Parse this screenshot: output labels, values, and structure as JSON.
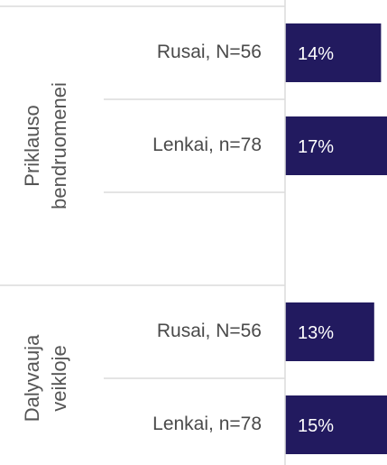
{
  "chart_data": {
    "type": "bar",
    "orientation": "horizontal",
    "color": "#221a5f",
    "groups": [
      {
        "name": "Priklauso bendruomenei",
        "categories": [
          "Rusai, N=56",
          "Lenkai, n=78",
          null
        ],
        "values": [
          14,
          17,
          null
        ],
        "value_labels": [
          "14%",
          "17%",
          null
        ]
      },
      {
        "name": "Dalyvauja veikloje",
        "categories": [
          "Rusai, N=56",
          "Lenkai, n=78"
        ],
        "values": [
          13,
          15
        ],
        "value_labels": [
          "13%",
          "15%"
        ]
      }
    ]
  }
}
